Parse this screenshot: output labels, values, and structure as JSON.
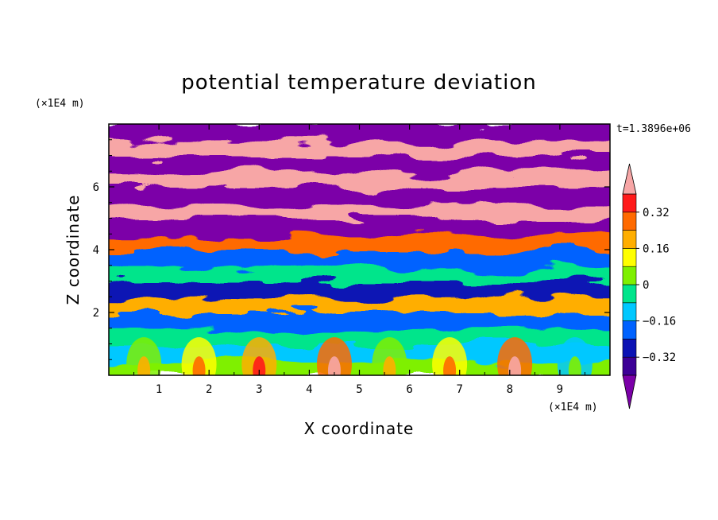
{
  "chart_data": {
    "type": "heatmap",
    "title": "potential temperature deviation",
    "xlabel": "X coordinate",
    "ylabel": "Z coordinate",
    "x_unit": "(×1E4 m)",
    "y_unit": "(×1E4 m)",
    "time_label": "t=1.3896e+06",
    "xlim": [
      0,
      10
    ],
    "ylim": [
      0,
      8
    ],
    "x_ticks": [
      1,
      2,
      3,
      4,
      5,
      6,
      7,
      8,
      9
    ],
    "x_tick_labels": [
      "1",
      "2",
      "3",
      "4",
      "5",
      "6",
      "7",
      "8",
      "9"
    ],
    "y_ticks": [
      2,
      4,
      6
    ],
    "y_tick_labels": [
      "2",
      "4",
      "6"
    ],
    "colorbar": {
      "levels": [
        -0.4,
        -0.32,
        -0.24,
        -0.16,
        -0.08,
        0,
        0.08,
        0.16,
        0.24,
        0.32,
        0.4
      ],
      "colors": [
        "#7b00a8",
        "#3c0096",
        "#0b12b4",
        "#0062ff",
        "#00c8ff",
        "#00e58b",
        "#7ff000",
        "#ffff00",
        "#ffae00",
        "#ff6a00",
        "#ff1a1a",
        "#f7a6a6"
      ],
      "tick_values": [
        -0.32,
        -0.16,
        0,
        0.16,
        0.32
      ],
      "tick_labels": [
        "−0.32",
        "−0.16",
        "0",
        "0.16",
        "0.32"
      ]
    },
    "z_profile": [
      {
        "z": 0.25,
        "level": 6
      },
      {
        "z": 0.75,
        "level": 4
      },
      {
        "z": 1.25,
        "level": 5
      },
      {
        "z": 1.75,
        "level": 3
      },
      {
        "z": 2.25,
        "level": 8
      },
      {
        "z": 2.75,
        "level": 2
      },
      {
        "z": 3.25,
        "level": 5
      },
      {
        "z": 3.75,
        "level": 3
      },
      {
        "z": 4.25,
        "level": 9
      },
      {
        "z": 4.75,
        "level": 0
      },
      {
        "z": 5.25,
        "level": 11
      },
      {
        "z": 5.75,
        "level": 0
      },
      {
        "z": 6.25,
        "level": 11
      },
      {
        "z": 6.75,
        "level": 0
      },
      {
        "z": 7.25,
        "level": 11
      },
      {
        "z": 7.75,
        "level": 0
      }
    ]
  }
}
